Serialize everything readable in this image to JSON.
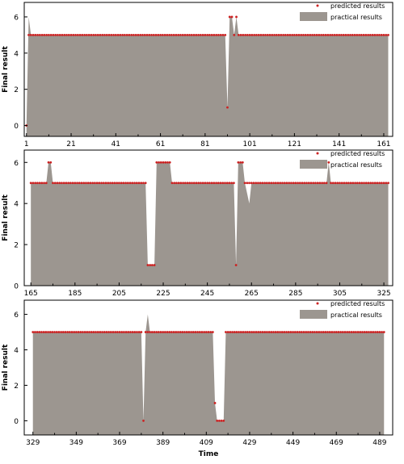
{
  "chart_data": [
    {
      "type": "area",
      "xlabel": "",
      "ylabel": "Final result",
      "xlim": [
        0,
        165
      ],
      "ylim": [
        -0.6,
        6.8
      ],
      "yticks": [
        0,
        2,
        4,
        6
      ],
      "xticks": [
        1,
        21,
        41,
        61,
        81,
        101,
        121,
        141,
        161
      ],
      "x_start": 1,
      "legend": {
        "position": "top-right",
        "predicted": "predicted results",
        "practical": "practical results"
      },
      "series": [
        {
          "name": "practical results",
          "kind": "area",
          "points": [
            [
              1,
              0
            ],
            [
              2,
              6
            ],
            [
              3,
              5
            ],
            [
              90,
              5
            ],
            [
              91,
              1
            ],
            [
              92,
              6
            ],
            [
              93,
              6
            ],
            [
              94,
              5
            ],
            [
              95,
              6
            ],
            [
              96,
              5
            ],
            [
              163,
              5
            ]
          ]
        },
        {
          "name": "predicted results",
          "kind": "scatter",
          "points": [
            [
              1,
              0
            ],
            [
              2,
              5
            ],
            [
              90,
              5
            ],
            [
              91,
              1
            ],
            [
              92,
              6
            ],
            [
              93,
              6
            ],
            [
              94,
              5
            ],
            [
              95,
              6
            ],
            [
              96,
              5
            ],
            [
              163,
              5
            ]
          ]
        }
      ]
    },
    {
      "type": "area",
      "xlabel": "",
      "ylabel": "Final result",
      "xlim": [
        162,
        329
      ],
      "ylim": [
        0,
        6.6
      ],
      "yticks": [
        0,
        2,
        4,
        6
      ],
      "xticks": [
        165,
        185,
        205,
        225,
        245,
        265,
        285,
        305,
        325
      ],
      "legend": {
        "position": "top-right",
        "predicted": "predicted results",
        "practical": "practical results"
      },
      "series": [
        {
          "name": "practical results",
          "kind": "area",
          "points": [
            [
              165,
              5
            ],
            [
              172,
              5
            ],
            [
              173,
              6
            ],
            [
              174,
              6
            ],
            [
              175,
              5
            ],
            [
              217,
              5
            ],
            [
              218,
              1
            ],
            [
              221,
              1
            ],
            [
              222,
              6
            ],
            [
              228,
              6
            ],
            [
              229,
              5
            ],
            [
              257,
              5
            ],
            [
              258,
              1
            ],
            [
              259,
              6
            ],
            [
              261,
              6
            ],
            [
              262,
              5
            ],
            [
              264,
              4
            ],
            [
              265,
              5
            ],
            [
              299,
              5
            ],
            [
              300,
              6
            ],
            [
              301,
              5
            ],
            [
              327,
              5
            ]
          ]
        },
        {
          "name": "predicted results",
          "kind": "scatter",
          "points": [
            [
              165,
              5
            ],
            [
              172,
              5
            ],
            [
              173,
              6
            ],
            [
              174,
              6
            ],
            [
              175,
              5
            ],
            [
              217,
              5
            ],
            [
              218,
              1
            ],
            [
              221,
              1
            ],
            [
              222,
              6
            ],
            [
              228,
              6
            ],
            [
              229,
              5
            ],
            [
              257,
              5
            ],
            [
              258,
              1
            ],
            [
              259,
              6
            ],
            [
              261,
              6
            ],
            [
              262,
              5
            ],
            [
              299,
              5
            ],
            [
              300,
              6
            ],
            [
              301,
              5
            ],
            [
              327,
              5
            ]
          ]
        }
      ]
    },
    {
      "type": "area",
      "xlabel": "Time",
      "ylabel": "Final result",
      "xlim": [
        325,
        495
      ],
      "ylim": [
        -0.8,
        6.8
      ],
      "yticks": [
        0,
        2,
        4,
        6
      ],
      "xticks": [
        329,
        349,
        369,
        389,
        409,
        429,
        449,
        469,
        489
      ],
      "legend": {
        "position": "top-right",
        "predicted": "predicted results",
        "practical": "practical results"
      },
      "series": [
        {
          "name": "practical results",
          "kind": "area",
          "points": [
            [
              329,
              5
            ],
            [
              379,
              5
            ],
            [
              380,
              0
            ],
            [
              381,
              5
            ],
            [
              382,
              6
            ],
            [
              383,
              5
            ],
            [
              412,
              5
            ],
            [
              413,
              1
            ],
            [
              414,
              0
            ],
            [
              417,
              0
            ],
            [
              418,
              5
            ],
            [
              491,
              5
            ]
          ]
        },
        {
          "name": "predicted results",
          "kind": "scatter",
          "points": [
            [
              329,
              5
            ],
            [
              379,
              5
            ],
            [
              380,
              0
            ],
            [
              381,
              5
            ],
            [
              382,
              5
            ],
            [
              383,
              5
            ],
            [
              412,
              5
            ],
            [
              413,
              1
            ],
            [
              414,
              0
            ],
            [
              417,
              0
            ],
            [
              418,
              5
            ],
            [
              491,
              5
            ]
          ]
        }
      ]
    }
  ]
}
